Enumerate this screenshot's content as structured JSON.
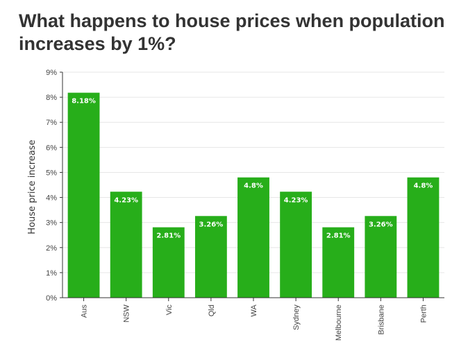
{
  "title": "What happens to house prices when population increases by 1%?",
  "colors": {
    "bar": "#27ae1a",
    "grid": "#e6e6e6",
    "axis": "#333333",
    "text": "#333333",
    "label": "#ffffff"
  },
  "chart_data": {
    "type": "bar",
    "title": "What happens to house prices when population increases by 1%?",
    "xlabel": "",
    "ylabel": "House price increase",
    "categories": [
      "Aus",
      "NSW",
      "Vic",
      "Qld",
      "WA",
      "Sydney",
      "Melbourne",
      "Brisbane",
      "Perth"
    ],
    "values": [
      8.18,
      4.23,
      2.81,
      3.26,
      4.8,
      4.23,
      2.81,
      3.26,
      4.8
    ],
    "data_labels": [
      "8.18%",
      "4.23%",
      "2.81%",
      "3.26%",
      "4.8%",
      "4.23%",
      "2.81%",
      "3.26%",
      "4.8%"
    ],
    "ylim": [
      0,
      9
    ],
    "yticks": [
      0,
      1,
      2,
      3,
      4,
      5,
      6,
      7,
      8,
      9
    ],
    "ytick_labels": [
      "0%",
      "1%",
      "2%",
      "3%",
      "4%",
      "5%",
      "6%",
      "7%",
      "8%",
      "9%"
    ],
    "grid": true,
    "legend": "none"
  }
}
